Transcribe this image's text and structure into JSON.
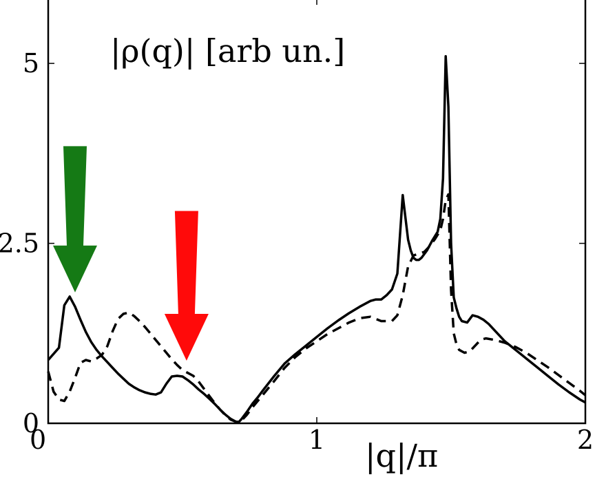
{
  "chart_data": {
    "type": "line",
    "title": "|ρ(q)| [arb un.]",
    "xlabel": "|q|/π",
    "ylabel": "",
    "xlim": [
      0,
      2
    ],
    "ylim": [
      0,
      5.9
    ],
    "xticks": [
      "0",
      "1",
      "2"
    ],
    "xtick_values": [
      0,
      1,
      2
    ],
    "yticks": [
      "0",
      "2.5",
      "5"
    ],
    "ytick_values": [
      0,
      2.5,
      5
    ],
    "grid": false,
    "series": [
      {
        "style": "solid",
        "color": "#000000",
        "x": [
          0.0,
          0.04,
          0.06,
          0.08,
          0.1,
          0.12,
          0.14,
          0.16,
          0.18,
          0.2,
          0.22,
          0.24,
          0.26,
          0.28,
          0.3,
          0.32,
          0.34,
          0.36,
          0.38,
          0.4,
          0.42,
          0.44,
          0.46,
          0.48,
          0.5,
          0.52,
          0.54,
          0.56,
          0.58,
          0.6,
          0.62,
          0.64,
          0.66,
          0.68,
          0.7,
          0.71,
          0.72,
          0.74,
          0.76,
          0.78,
          0.8,
          0.84,
          0.88,
          0.92,
          0.96,
          1.0,
          1.04,
          1.08,
          1.12,
          1.16,
          1.2,
          1.22,
          1.24,
          1.26,
          1.28,
          1.3,
          1.32,
          1.33,
          1.34,
          1.35,
          1.36,
          1.37,
          1.38,
          1.39,
          1.41,
          1.43,
          1.45,
          1.46,
          1.47,
          1.48,
          1.49,
          1.5,
          1.51,
          1.52,
          1.53,
          1.54,
          1.56,
          1.58,
          1.6,
          1.62,
          1.64,
          1.66,
          1.68,
          1.7,
          1.74,
          1.78,
          1.82,
          1.86,
          1.9,
          1.94,
          1.98,
          2.0
        ],
        "y": [
          0.88,
          1.05,
          1.64,
          1.76,
          1.62,
          1.44,
          1.27,
          1.13,
          1.02,
          0.93,
          0.85,
          0.77,
          0.69,
          0.62,
          0.55,
          0.5,
          0.46,
          0.43,
          0.41,
          0.4,
          0.43,
          0.55,
          0.65,
          0.66,
          0.65,
          0.6,
          0.54,
          0.47,
          0.41,
          0.34,
          0.27,
          0.19,
          0.12,
          0.06,
          0.02,
          0.02,
          0.06,
          0.16,
          0.27,
          0.36,
          0.46,
          0.65,
          0.83,
          0.96,
          1.08,
          1.2,
          1.32,
          1.43,
          1.53,
          1.62,
          1.7,
          1.72,
          1.72,
          1.78,
          1.86,
          2.08,
          3.17,
          2.86,
          2.55,
          2.4,
          2.3,
          2.27,
          2.27,
          2.3,
          2.4,
          2.54,
          2.66,
          2.84,
          3.4,
          5.1,
          4.4,
          2.5,
          1.75,
          1.6,
          1.48,
          1.42,
          1.4,
          1.5,
          1.48,
          1.44,
          1.38,
          1.3,
          1.22,
          1.14,
          1.02,
          0.9,
          0.78,
          0.66,
          0.54,
          0.43,
          0.33,
          0.29
        ]
      },
      {
        "style": "dashed",
        "color": "#000000",
        "x": [
          0.0,
          0.02,
          0.04,
          0.06,
          0.08,
          0.1,
          0.12,
          0.14,
          0.16,
          0.18,
          0.2,
          0.22,
          0.24,
          0.26,
          0.28,
          0.3,
          0.32,
          0.34,
          0.36,
          0.38,
          0.4,
          0.42,
          0.44,
          0.46,
          0.48,
          0.5,
          0.52,
          0.54,
          0.56,
          0.58,
          0.6,
          0.62,
          0.64,
          0.66,
          0.68,
          0.7,
          0.72,
          0.74,
          0.76,
          0.8,
          0.84,
          0.88,
          0.92,
          0.96,
          1.0,
          1.04,
          1.08,
          1.12,
          1.16,
          1.2,
          1.24,
          1.28,
          1.3,
          1.32,
          1.34,
          1.36,
          1.38,
          1.4,
          1.42,
          1.44,
          1.46,
          1.47,
          1.48,
          1.49,
          1.5,
          1.51,
          1.52,
          1.53,
          1.55,
          1.57,
          1.59,
          1.61,
          1.63,
          1.66,
          1.7,
          1.74,
          1.78,
          1.82,
          1.86,
          1.9,
          1.94,
          1.98,
          2.0
        ],
        "y": [
          0.72,
          0.44,
          0.33,
          0.31,
          0.44,
          0.63,
          0.84,
          0.88,
          0.86,
          0.9,
          0.95,
          1.07,
          1.28,
          1.45,
          1.52,
          1.54,
          1.49,
          1.42,
          1.34,
          1.25,
          1.16,
          1.07,
          0.98,
          0.89,
          0.81,
          0.74,
          0.7,
          0.66,
          0.58,
          0.48,
          0.38,
          0.28,
          0.19,
          0.11,
          0.05,
          0.02,
          0.04,
          0.12,
          0.22,
          0.4,
          0.58,
          0.77,
          0.92,
          1.04,
          1.14,
          1.24,
          1.32,
          1.4,
          1.46,
          1.48,
          1.42,
          1.42,
          1.5,
          1.78,
          2.18,
          2.33,
          2.36,
          2.38,
          2.46,
          2.56,
          2.68,
          2.84,
          3.1,
          3.18,
          1.85,
          1.25,
          1.1,
          1.02,
          0.98,
          1.0,
          1.08,
          1.16,
          1.18,
          1.16,
          1.12,
          1.06,
          0.98,
          0.88,
          0.78,
          0.67,
          0.56,
          0.45,
          0.39
        ]
      }
    ],
    "annotations": [
      {
        "type": "arrow",
        "color": "#157a15",
        "x": 0.1,
        "y_top": 3.85,
        "y_tip": 1.82
      },
      {
        "type": "arrow",
        "color": "#ff0a0a",
        "x": 0.515,
        "y_top": 2.95,
        "y_tip": 0.87
      }
    ]
  }
}
